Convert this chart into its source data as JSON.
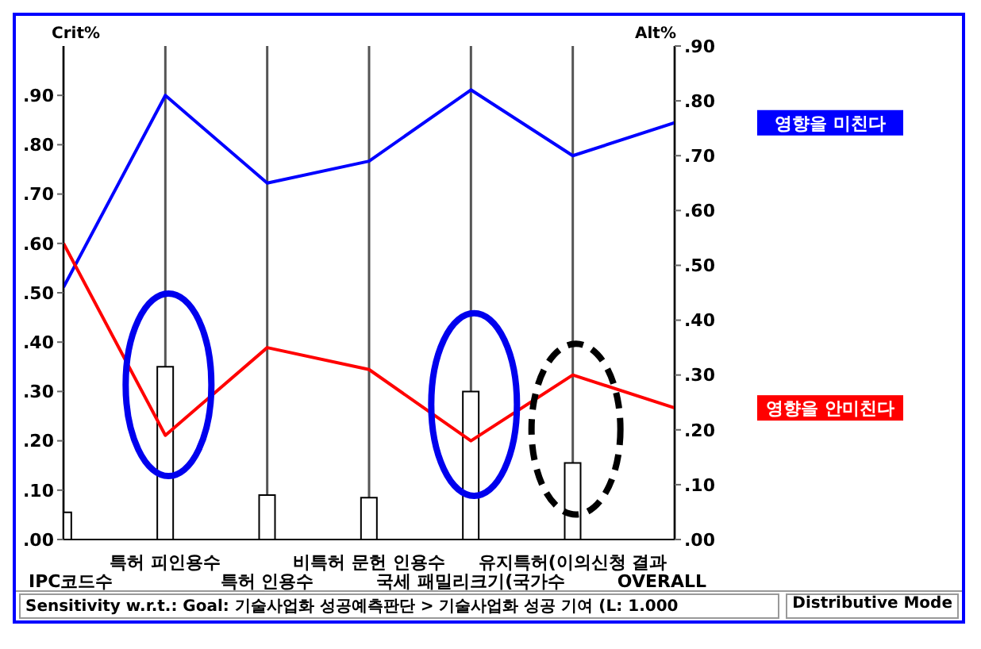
{
  "chart_data": {
    "type": "bar",
    "ylabel": "Crit%",
    "y2label": "Alt%",
    "categories": [
      "IPC코드수",
      "특허 피인용수",
      "특허 인용수",
      "비특허 문헌 인용수",
      "국세 패밀리크기(국가수",
      "유지특허(이의신청 결과",
      "OVERALL"
    ],
    "series": [
      {
        "color": "#ffffff",
        "values": [
          0.055,
          0.35,
          0.09,
          0.085,
          0.3,
          0.155,
          null
        ]
      },
      {
        "type": "line",
        "name": "영향을 미친다",
        "color": "#0000ff",
        "axis": "y2",
        "values": [
          0.46,
          0.81,
          0.65,
          0.69,
          0.82,
          0.7,
          0.76
        ]
      },
      {
        "type": "line",
        "name": "영향을 안미친다",
        "color": "#ff0000",
        "axis": "y2",
        "values": [
          0.54,
          0.19,
          0.35,
          0.31,
          0.18,
          0.3,
          0.24
        ]
      }
    ],
    "ylim": [
      0,
      1.0
    ],
    "yticks": [
      {
        "value": 0,
        "label": ".00"
      },
      {
        "value": 0.1,
        "label": ".10"
      },
      {
        "value": 0.2,
        "label": ".20"
      },
      {
        "value": 0.3,
        "label": ".30"
      },
      {
        "value": 0.4,
        "label": ".40"
      },
      {
        "value": 0.5,
        "label": ".50"
      },
      {
        "value": 0.6,
        "label": ".60"
      },
      {
        "value": 0.7,
        "label": ".70"
      },
      {
        "value": 0.8,
        "label": ".80"
      },
      {
        "value": 0.9,
        "label": ".90"
      }
    ],
    "y2lim": [
      0,
      0.9
    ],
    "y2ticks": [
      {
        "value": 0,
        "label": ".00"
      },
      {
        "value": 0.1,
        "label": ".10"
      },
      {
        "value": 0.2,
        "label": ".20"
      },
      {
        "value": 0.3,
        "label": ".30"
      },
      {
        "value": 0.4,
        "label": ".40"
      },
      {
        "value": 0.5,
        "label": ".50"
      },
      {
        "value": 0.6,
        "label": ".60"
      },
      {
        "value": 0.7,
        "label": ".70"
      },
      {
        "value": 0.8,
        "label": ".80"
      },
      {
        "value": 0.9,
        "label": ".90"
      }
    ],
    "grid": "x",
    "legend": "right",
    "annotations": [
      "Sensitivity w.r.t.: Goal: 기술사업화 성공예측판단 > 기술사업화 성공 기여 (L: 1.000",
      "Distributive Mode"
    ]
  }
}
